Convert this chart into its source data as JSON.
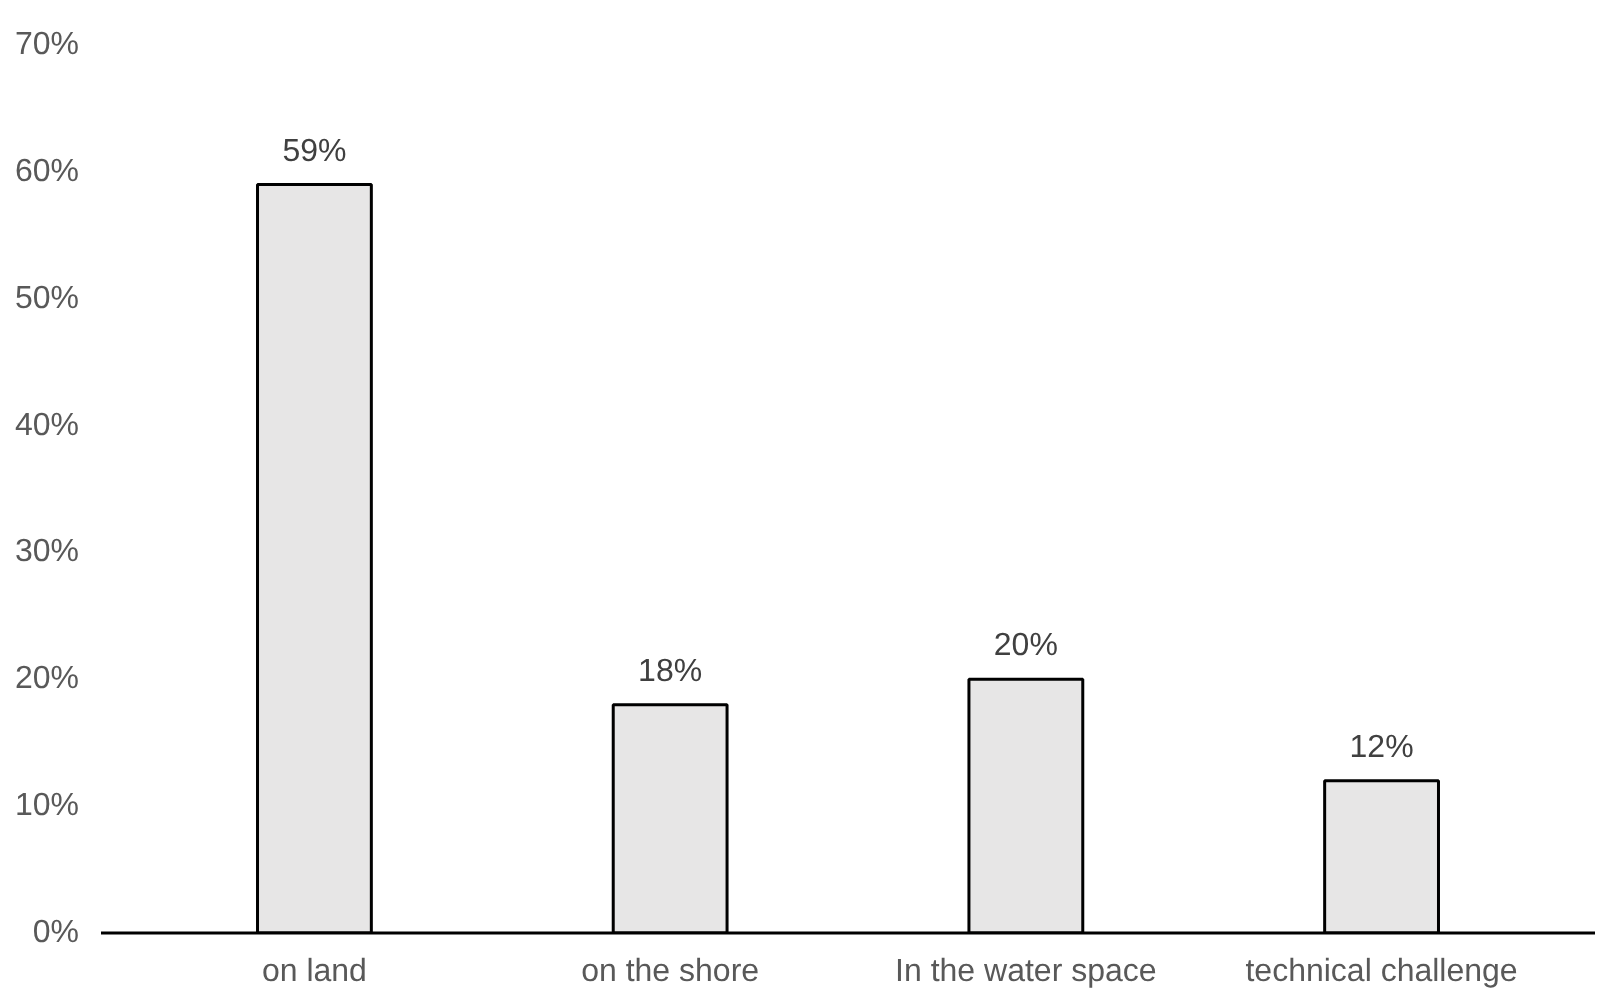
{
  "chart_data": {
    "type": "bar",
    "categories": [
      "on land",
      "on the shore",
      "In the water space",
      "technical challenge"
    ],
    "values": [
      59,
      18,
      20,
      12
    ],
    "value_labels": [
      "59%",
      "18%",
      "20%",
      "12%"
    ],
    "color": "#e7e6e6",
    "ylim": [
      0,
      70
    ],
    "yticks": [
      {
        "value": 0,
        "label": "0%"
      },
      {
        "value": 10,
        "label": "10%"
      },
      {
        "value": 20,
        "label": "20%"
      },
      {
        "value": 30,
        "label": "30%"
      },
      {
        "value": 40,
        "label": "40%"
      },
      {
        "value": 50,
        "label": "50%"
      },
      {
        "value": 60,
        "label": "60%"
      },
      {
        "value": 70,
        "label": "70%"
      }
    ],
    "grid": false
  }
}
